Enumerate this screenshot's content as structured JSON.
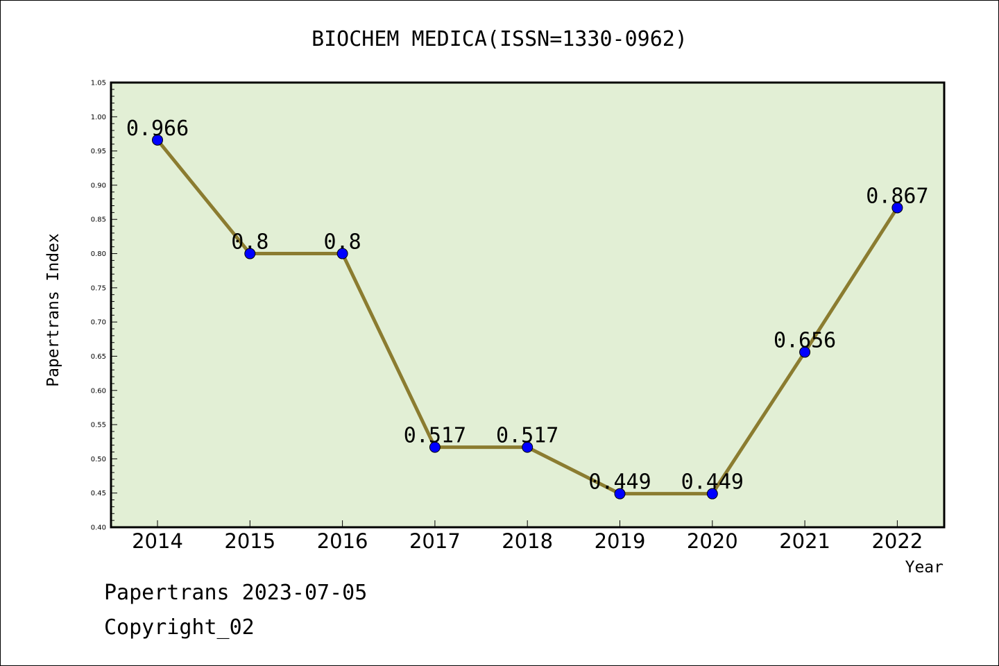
{
  "chart_data": {
    "type": "line",
    "title": "BIOCHEM MEDICA(ISSN=1330-0962)",
    "xlabel": "Year",
    "ylabel": "Papertrans Index",
    "categories": [
      "2014",
      "2015",
      "2016",
      "2017",
      "2018",
      "2019",
      "2020",
      "2021",
      "2022"
    ],
    "series": [
      {
        "values": [
          0.966,
          0.8,
          0.8,
          0.517,
          0.517,
          0.449,
          0.449,
          0.656,
          0.867
        ],
        "data_labels": [
          "0.966",
          "0.8",
          "0.8",
          "0.517",
          "0.517",
          "0.449",
          "0.449",
          "0.656",
          "0.867"
        ]
      }
    ],
    "ylim": [
      0.4,
      1.05
    ],
    "yticks": [
      "0.40",
      "0.45",
      "0.50",
      "0.55",
      "0.60",
      "0.65",
      "0.70",
      "0.75",
      "0.80",
      "0.85",
      "0.90",
      "0.95",
      "1.00",
      "1.05"
    ],
    "grid": false,
    "colors": {
      "plot_background": "#e2efd5",
      "line": "#8b7c30",
      "marker": "#0000ff"
    }
  },
  "footer": {
    "line1": "Papertrans 2023-07-05",
    "line2": "Copyright_02"
  }
}
